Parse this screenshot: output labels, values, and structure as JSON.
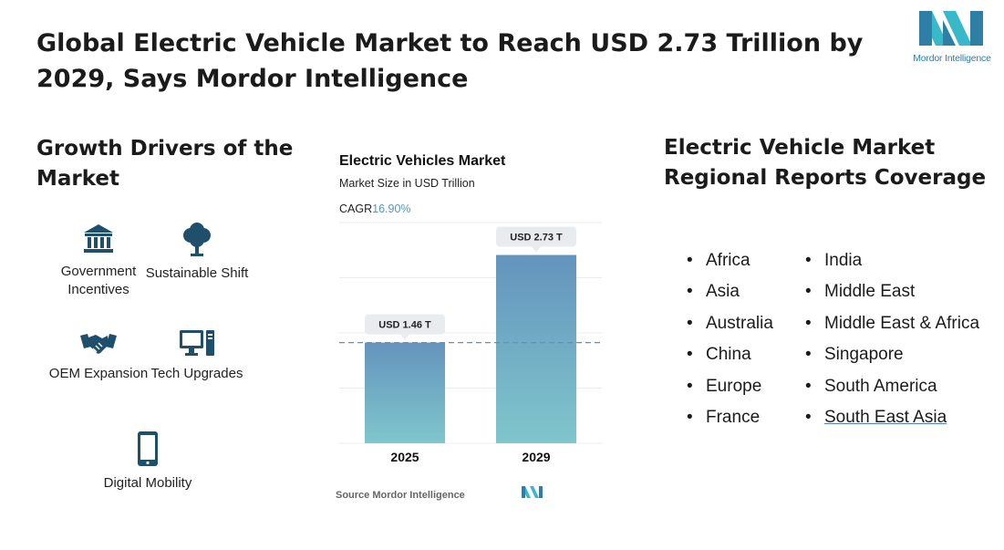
{
  "title": "Global Electric Vehicle Market to Reach USD 2.73 Trillion by 2029, Says Mordor Intelligence",
  "logo": {
    "text": "Mordor Intelligence",
    "colors": [
      "#2e7ea6",
      "#38b8c8"
    ]
  },
  "drivers": {
    "heading": "Growth Drivers of the Market",
    "items": [
      {
        "label": "Government Incentives",
        "icon": "government-building-icon"
      },
      {
        "label": "Sustainable Shift",
        "icon": "tree-icon"
      },
      {
        "label": "OEM Expansion",
        "icon": "handshake-icon"
      },
      {
        "label": "Tech Upgrades",
        "icon": "computer-icon"
      },
      {
        "label": "Digital Mobility",
        "icon": "smartphone-icon"
      }
    ],
    "icon_color": "#1f4f6b"
  },
  "chart_data": {
    "type": "bar",
    "title": "Electric Vehicles Market",
    "subtitle": "Market Size in USD Trillion",
    "cagr_label": "CAGR",
    "cagr_value": "16.90%",
    "categories": [
      "2025",
      "2029"
    ],
    "values": [
      1.46,
      2.73
    ],
    "data_labels": [
      "USD 1.46 T",
      "USD 2.73 T"
    ],
    "ylim": [
      0,
      3.2
    ],
    "grid": true,
    "reference_line": 1.46,
    "bar_gradient": [
      "#6494bd",
      "#80c6cc"
    ],
    "source": "Source Mordor Intelligence"
  },
  "coverage": {
    "heading": "Electric Vehicle Market Regional Reports Coverage",
    "column1": [
      "Africa",
      "Asia",
      "Australia",
      "China",
      "Europe",
      "France"
    ],
    "column2": [
      "India",
      "Middle East",
      "Middle East & Africa",
      "Singapore",
      "South America",
      "South East Asia"
    ]
  }
}
